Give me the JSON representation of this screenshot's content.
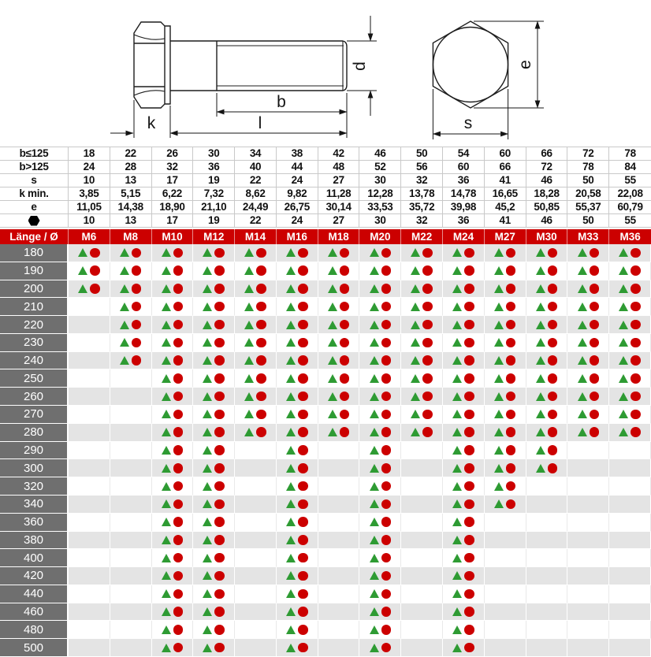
{
  "colors": {
    "header_red": "#cc0000",
    "marker_red": "#cc0000",
    "marker_green": "#2e9b33",
    "label_column_gray": "#6f6f6f",
    "alt_row_gray": "#e4e4e4",
    "grid_line": "#c9c9c9"
  },
  "drawing": {
    "labels": {
      "k": "k",
      "l": "l",
      "b": "b",
      "d": "d",
      "e": "e",
      "s": "s"
    },
    "views": [
      "bolt-side-view",
      "hex-head-end-view"
    ]
  },
  "dim_table": {
    "rows": [
      {
        "label": "b≤125",
        "values": [
          "18",
          "22",
          "26",
          "30",
          "34",
          "38",
          "42",
          "46",
          "50",
          "54",
          "60",
          "66",
          "72",
          "78"
        ]
      },
      {
        "label": "b>125",
        "values": [
          "24",
          "28",
          "32",
          "36",
          "40",
          "44",
          "48",
          "52",
          "56",
          "60",
          "66",
          "72",
          "78",
          "84"
        ]
      },
      {
        "label": "s",
        "values": [
          "10",
          "13",
          "17",
          "19",
          "22",
          "24",
          "27",
          "30",
          "32",
          "36",
          "41",
          "46",
          "50",
          "55"
        ]
      },
      {
        "label": "k min.",
        "values": [
          "3,85",
          "5,15",
          "6,22",
          "7,32",
          "8,62",
          "9,82",
          "11,28",
          "12,28",
          "13,78",
          "14,78",
          "16,65",
          "18,28",
          "20,58",
          "22,08"
        ]
      },
      {
        "label": "e",
        "values": [
          "11,05",
          "14,38",
          "18,90",
          "21,10",
          "24,49",
          "26,75",
          "30,14",
          "33,53",
          "35,72",
          "39,98",
          "45,2",
          "50,85",
          "55,37",
          "60,79"
        ]
      },
      {
        "label": "",
        "icon": "hexagon",
        "values": [
          "10",
          "13",
          "17",
          "19",
          "22",
          "24",
          "27",
          "30",
          "32",
          "36",
          "41",
          "46",
          "50",
          "55"
        ]
      }
    ]
  },
  "matrix": {
    "corner_label": "Länge / Ø",
    "columns": [
      "M6",
      "M8",
      "M10",
      "M12",
      "M14",
      "M16",
      "M18",
      "M20",
      "M22",
      "M24",
      "M27",
      "M30",
      "M33",
      "M36"
    ],
    "marker_meaning": {
      "triangle": "green-triangle-marker",
      "circle": "red-circle-marker"
    },
    "rows": [
      {
        "length": "180",
        "cells": [
          1,
          1,
          1,
          1,
          1,
          1,
          1,
          1,
          1,
          1,
          1,
          1,
          1,
          1
        ]
      },
      {
        "length": "190",
        "cells": [
          1,
          1,
          1,
          1,
          1,
          1,
          1,
          1,
          1,
          1,
          1,
          1,
          1,
          1
        ]
      },
      {
        "length": "200",
        "cells": [
          1,
          1,
          1,
          1,
          1,
          1,
          1,
          1,
          1,
          1,
          1,
          1,
          1,
          1
        ]
      },
      {
        "length": "210",
        "cells": [
          0,
          1,
          1,
          1,
          1,
          1,
          1,
          1,
          1,
          1,
          1,
          1,
          1,
          1
        ]
      },
      {
        "length": "220",
        "cells": [
          0,
          1,
          1,
          1,
          1,
          1,
          1,
          1,
          1,
          1,
          1,
          1,
          1,
          1
        ]
      },
      {
        "length": "230",
        "cells": [
          0,
          1,
          1,
          1,
          1,
          1,
          1,
          1,
          1,
          1,
          1,
          1,
          1,
          1
        ]
      },
      {
        "length": "240",
        "cells": [
          0,
          1,
          1,
          1,
          1,
          1,
          1,
          1,
          1,
          1,
          1,
          1,
          1,
          1
        ]
      },
      {
        "length": "250",
        "cells": [
          0,
          0,
          1,
          1,
          1,
          1,
          1,
          1,
          1,
          1,
          1,
          1,
          1,
          1
        ]
      },
      {
        "length": "260",
        "cells": [
          0,
          0,
          1,
          1,
          1,
          1,
          1,
          1,
          1,
          1,
          1,
          1,
          1,
          1
        ]
      },
      {
        "length": "270",
        "cells": [
          0,
          0,
          1,
          1,
          1,
          1,
          1,
          1,
          1,
          1,
          1,
          1,
          1,
          1
        ]
      },
      {
        "length": "280",
        "cells": [
          0,
          0,
          1,
          1,
          1,
          1,
          1,
          1,
          1,
          1,
          1,
          1,
          1,
          1
        ]
      },
      {
        "length": "290",
        "cells": [
          0,
          0,
          1,
          1,
          0,
          1,
          0,
          1,
          0,
          1,
          1,
          1,
          0,
          0
        ]
      },
      {
        "length": "300",
        "cells": [
          0,
          0,
          1,
          1,
          0,
          1,
          0,
          1,
          0,
          1,
          1,
          1,
          0,
          0
        ]
      },
      {
        "length": "320",
        "cells": [
          0,
          0,
          1,
          1,
          0,
          1,
          0,
          1,
          0,
          1,
          1,
          0,
          0,
          0
        ]
      },
      {
        "length": "340",
        "cells": [
          0,
          0,
          1,
          1,
          0,
          1,
          0,
          1,
          0,
          1,
          1,
          0,
          0,
          0
        ]
      },
      {
        "length": "360",
        "cells": [
          0,
          0,
          1,
          1,
          0,
          1,
          0,
          1,
          0,
          1,
          0,
          0,
          0,
          0
        ]
      },
      {
        "length": "380",
        "cells": [
          0,
          0,
          1,
          1,
          0,
          1,
          0,
          1,
          0,
          1,
          0,
          0,
          0,
          0
        ]
      },
      {
        "length": "400",
        "cells": [
          0,
          0,
          1,
          1,
          0,
          1,
          0,
          1,
          0,
          1,
          0,
          0,
          0,
          0
        ]
      },
      {
        "length": "420",
        "cells": [
          0,
          0,
          1,
          1,
          0,
          1,
          0,
          1,
          0,
          1,
          0,
          0,
          0,
          0
        ]
      },
      {
        "length": "440",
        "cells": [
          0,
          0,
          1,
          1,
          0,
          1,
          0,
          1,
          0,
          1,
          0,
          0,
          0,
          0
        ]
      },
      {
        "length": "460",
        "cells": [
          0,
          0,
          1,
          1,
          0,
          1,
          0,
          1,
          0,
          1,
          0,
          0,
          0,
          0
        ]
      },
      {
        "length": "480",
        "cells": [
          0,
          0,
          1,
          1,
          0,
          1,
          0,
          1,
          0,
          1,
          0,
          0,
          0,
          0
        ]
      },
      {
        "length": "500",
        "cells": [
          0,
          0,
          1,
          1,
          0,
          1,
          0,
          1,
          0,
          1,
          0,
          0,
          0,
          0
        ]
      }
    ]
  }
}
